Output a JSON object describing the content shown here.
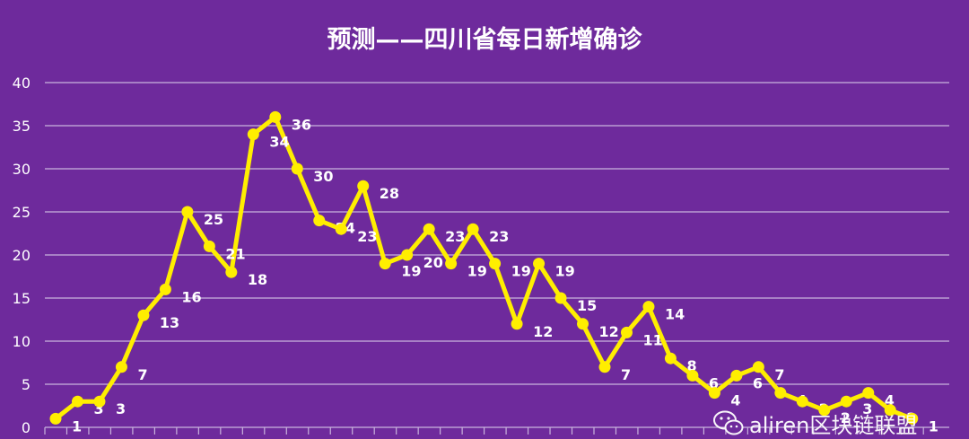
{
  "chart_data": {
    "type": "line",
    "title": "预测——四川省每日新增确诊",
    "xlabel": "",
    "ylabel": "",
    "ylim": [
      0,
      40
    ],
    "y_ticks": [
      0,
      5,
      10,
      15,
      20,
      25,
      30,
      35,
      40
    ],
    "grid": true,
    "legend": "none",
    "series": [
      {
        "values": [
          1,
          3,
          3,
          7,
          13,
          16,
          25,
          21,
          18,
          34,
          36,
          30,
          24,
          23,
          28,
          19,
          20,
          23,
          19,
          23,
          19,
          12,
          19,
          15,
          12,
          7,
          11,
          14,
          8,
          6,
          4,
          6,
          7,
          4,
          3,
          2,
          3,
          4,
          2,
          1
        ]
      }
    ],
    "colors": {
      "background": "#6e2a9c",
      "line": "#ffee00",
      "grid": "#c9b3dd",
      "text": "#ffffff"
    }
  },
  "watermark": {
    "text": "aliren区块链联盟",
    "icon": "wechat-icon"
  }
}
